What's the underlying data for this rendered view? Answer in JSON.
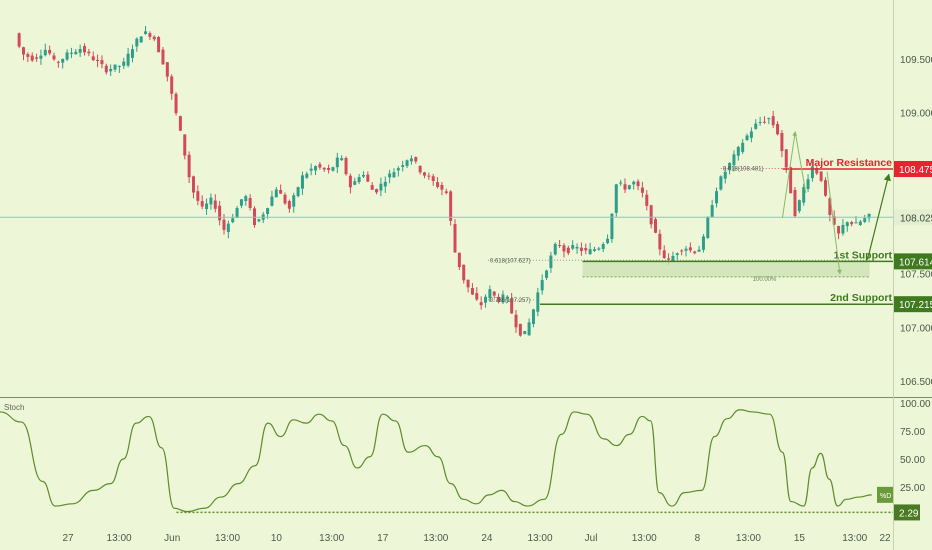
{
  "chart_data": [
    {
      "type": "candlestick",
      "title": "",
      "ylim": [
        106.35,
        110.05
      ],
      "y_ticks": [
        106.5,
        107.0,
        107.5,
        108.0,
        108.5,
        109.0,
        109.5
      ],
      "y_tick_labels": [
        "106.500",
        "107.000",
        "107.500",
        "108.000",
        "108.500",
        "109.000",
        "109.500"
      ],
      "x_tick_labels": [
        "27",
        "13:00",
        "Jun",
        "13:00",
        "10",
        "13:00",
        "17",
        "13:00",
        "24",
        "13:00",
        "Jul",
        "13:00",
        "8",
        "13:00",
        "15",
        "13:00",
        "22"
      ],
      "path_points": [
        [
          0.0,
          110.1
        ],
        [
          0.6,
          109.8
        ],
        [
          1.0,
          109.55
        ],
        [
          1.6,
          109.5
        ],
        [
          2.2,
          109.6
        ],
        [
          2.6,
          109.45
        ],
        [
          3.2,
          109.55
        ],
        [
          3.8,
          109.6
        ],
        [
          4.4,
          109.5
        ],
        [
          5.0,
          109.4
        ],
        [
          5.8,
          109.45
        ],
        [
          6.2,
          109.6
        ],
        [
          6.7,
          109.75
        ],
        [
          7.2,
          109.72
        ],
        [
          7.8,
          109.4
        ],
        [
          8.5,
          108.8
        ],
        [
          9.0,
          108.3
        ],
        [
          9.5,
          108.1
        ],
        [
          10.0,
          108.2
        ],
        [
          10.5,
          107.9
        ],
        [
          11.0,
          108.05
        ],
        [
          11.5,
          108.25
        ],
        [
          12.0,
          107.95
        ],
        [
          12.5,
          108.1
        ],
        [
          13.0,
          108.3
        ],
        [
          13.6,
          108.1
        ],
        [
          14.2,
          108.4
        ],
        [
          14.8,
          108.5
        ],
        [
          15.5,
          108.45
        ],
        [
          16.0,
          108.6
        ],
        [
          16.5,
          108.3
        ],
        [
          17.0,
          108.45
        ],
        [
          17.6,
          108.25
        ],
        [
          18.2,
          108.4
        ],
        [
          18.8,
          108.5
        ],
        [
          19.3,
          108.6
        ],
        [
          19.8,
          108.45
        ],
        [
          20.4,
          108.35
        ],
        [
          21.0,
          108.25
        ],
        [
          21.4,
          107.7
        ],
        [
          21.8,
          107.45
        ],
        [
          22.2,
          107.3
        ],
        [
          22.6,
          107.2
        ],
        [
          23.0,
          107.35
        ],
        [
          23.4,
          107.25
        ],
        [
          23.8,
          107.3
        ],
        [
          24.2,
          107.05
        ],
        [
          24.6,
          106.9
        ],
        [
          25.0,
          107.1
        ],
        [
          25.4,
          107.4
        ],
        [
          25.8,
          107.6
        ],
        [
          26.2,
          107.8
        ],
        [
          26.6,
          107.7
        ],
        [
          27.0,
          107.75
        ],
        [
          27.6,
          107.7
        ],
        [
          28.2,
          107.75
        ],
        [
          28.6,
          107.85
        ],
        [
          29.0,
          108.35
        ],
        [
          29.4,
          108.3
        ],
        [
          29.8,
          108.35
        ],
        [
          30.2,
          108.25
        ],
        [
          30.6,
          108.0
        ],
        [
          31.0,
          107.75
        ],
        [
          31.4,
          107.6
        ],
        [
          31.8,
          107.7
        ],
        [
          32.2,
          107.75
        ],
        [
          32.6,
          107.7
        ],
        [
          33.0,
          107.75
        ],
        [
          33.4,
          108.1
        ],
        [
          33.8,
          108.35
        ],
        [
          34.4,
          108.55
        ],
        [
          35.0,
          108.75
        ],
        [
          35.6,
          108.9
        ],
        [
          36.2,
          108.95
        ],
        [
          36.6,
          108.8
        ],
        [
          37.0,
          108.45
        ],
        [
          37.4,
          108.05
        ],
        [
          37.8,
          108.3
        ],
        [
          38.2,
          108.5
        ],
        [
          38.6,
          108.4
        ],
        [
          39.0,
          108.05
        ],
        [
          39.4,
          107.85
        ],
        [
          39.8,
          108.0
        ],
        [
          40.2,
          107.95
        ],
        [
          40.6,
          108.0
        ],
        [
          41.0,
          108.05
        ]
      ],
      "last_price": "108.025",
      "annotations": {
        "major_resistance": {
          "label": "Major Resistance",
          "price": 108.475,
          "price_label": "108.475",
          "fib_label": "0.618(108.481)"
        },
        "first_support": {
          "label": "1st Support",
          "price": 107.614,
          "price_label": "107.614",
          "fib_label": "0.618(107.627)"
        },
        "second_support": {
          "label": "2nd Support",
          "price": 107.215,
          "price_label": "107.215",
          "fib_label": "0.786(107.257)"
        },
        "extension_label": "100.00%",
        "extension_price": 107.47,
        "last_price_level": 108.025
      },
      "colors": {
        "up": "#2e9e8a",
        "down": "#d24a5a",
        "background": "#eef6d8",
        "resistance": "#e8222e",
        "support": "#3f7a1e",
        "zone": "#cde3b5"
      }
    },
    {
      "type": "line",
      "series": [
        {
          "name": "Stoch",
          "values": [
            [
              0.0,
              92
            ],
            [
              1.0,
              83
            ],
            [
              2.0,
              30
            ],
            [
              2.6,
              8
            ],
            [
              3.4,
              10
            ],
            [
              4.4,
              22
            ],
            [
              5.2,
              28
            ],
            [
              5.8,
              50
            ],
            [
              6.4,
              82
            ],
            [
              7.0,
              88
            ],
            [
              7.6,
              60
            ],
            [
              8.2,
              6
            ],
            [
              8.8,
              3
            ],
            [
              9.6,
              6
            ],
            [
              10.4,
              16
            ],
            [
              11.2,
              28
            ],
            [
              12.0,
              44
            ],
            [
              12.6,
              82
            ],
            [
              13.2,
              70
            ],
            [
              13.8,
              85
            ],
            [
              14.4,
              82
            ],
            [
              15.0,
              90
            ],
            [
              15.6,
              84
            ],
            [
              16.2,
              62
            ],
            [
              16.8,
              42
            ],
            [
              17.4,
              52
            ],
            [
              18.0,
              90
            ],
            [
              18.6,
              84
            ],
            [
              19.2,
              56
            ],
            [
              20.0,
              62
            ],
            [
              20.6,
              52
            ],
            [
              21.2,
              28
            ],
            [
              21.8,
              14
            ],
            [
              22.4,
              10
            ],
            [
              23.0,
              18
            ],
            [
              23.6,
              22
            ],
            [
              24.2,
              12
            ],
            [
              24.8,
              8
            ],
            [
              25.6,
              14
            ],
            [
              26.4,
              72
            ],
            [
              27.0,
              92
            ],
            [
              27.6,
              90
            ],
            [
              28.4,
              68
            ],
            [
              29.0,
              62
            ],
            [
              29.6,
              72
            ],
            [
              30.2,
              88
            ],
            [
              30.6,
              84
            ],
            [
              31.0,
              20
            ],
            [
              31.6,
              8
            ],
            [
              32.2,
              20
            ],
            [
              33.0,
              22
            ],
            [
              33.6,
              70
            ],
            [
              34.2,
              86
            ],
            [
              34.8,
              94
            ],
            [
              35.4,
              92
            ],
            [
              36.2,
              90
            ],
            [
              36.8,
              56
            ],
            [
              37.2,
              12
            ],
            [
              37.8,
              8
            ],
            [
              38.2,
              42
            ],
            [
              38.6,
              55
            ],
            [
              39.0,
              32
            ],
            [
              39.4,
              8
            ],
            [
              39.8,
              14
            ],
            [
              40.4,
              16
            ],
            [
              41.0,
              18
            ]
          ]
        }
      ],
      "ylim": [
        0,
        100
      ],
      "y_tick_labels": [
        "100.00",
        "75.00",
        "50.00",
        "25.00",
        "2.29"
      ],
      "y_ticks": [
        100,
        75,
        50,
        25,
        2.29
      ],
      "last_value_label": "2.29",
      "last_value": 2.29,
      "tag_label": "%D",
      "tag_value": 18,
      "indicator_label": "Stoch",
      "colors": {
        "line": "#5b8c2a",
        "tag": "#6b9a3a"
      }
    }
  ]
}
